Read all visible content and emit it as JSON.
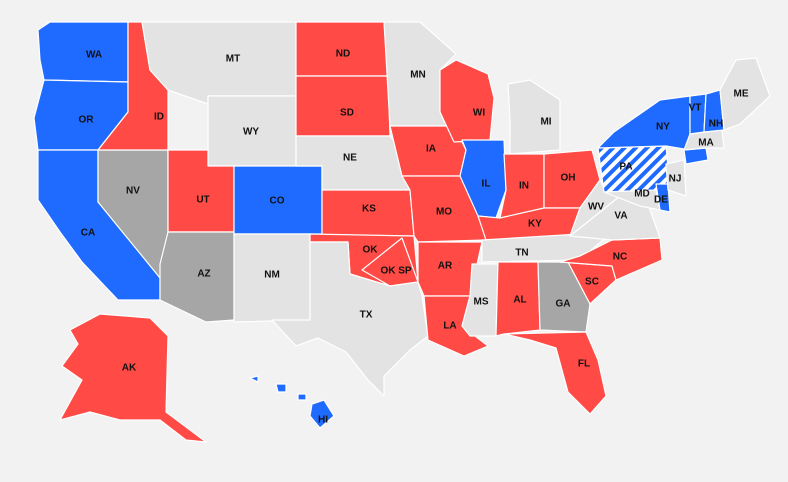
{
  "colors": {
    "blue": "#1f6bff",
    "red": "#ff4a45",
    "gray": "#a6a6a6",
    "light": "#e3e3e3",
    "background": "#f2f2f2"
  },
  "states": {
    "WA": {
      "label": "WA",
      "fill": "blue"
    },
    "OR": {
      "label": "OR",
      "fill": "blue"
    },
    "CA": {
      "label": "CA",
      "fill": "blue"
    },
    "NV": {
      "label": "NV",
      "fill": "gray"
    },
    "ID": {
      "label": "ID",
      "fill": "red"
    },
    "MT": {
      "label": "MT",
      "fill": "light"
    },
    "WY": {
      "label": "WY",
      "fill": "light"
    },
    "UT": {
      "label": "UT",
      "fill": "red"
    },
    "AZ": {
      "label": "AZ",
      "fill": "gray"
    },
    "CO": {
      "label": "CO",
      "fill": "blue"
    },
    "NM": {
      "label": "NM",
      "fill": "light"
    },
    "ND": {
      "label": "ND",
      "fill": "red"
    },
    "SD": {
      "label": "SD",
      "fill": "red"
    },
    "NE": {
      "label": "NE",
      "fill": "light"
    },
    "KS": {
      "label": "KS",
      "fill": "red"
    },
    "OK": {
      "label": "OK",
      "fill": "red"
    },
    "TX": {
      "label": "TX",
      "fill": "light"
    },
    "MN": {
      "label": "MN",
      "fill": "light"
    },
    "IA": {
      "label": "IA",
      "fill": "red"
    },
    "MO": {
      "label": "MO",
      "fill": "red"
    },
    "AR": {
      "label": "AR",
      "fill": "red"
    },
    "LA": {
      "label": "LA",
      "fill": "red"
    },
    "WI": {
      "label": "WI",
      "fill": "red"
    },
    "IL": {
      "label": "IL",
      "fill": "blue"
    },
    "MI": {
      "label": "MI",
      "fill": "light"
    },
    "IN": {
      "label": "IN",
      "fill": "red"
    },
    "OH": {
      "label": "OH",
      "fill": "red"
    },
    "KY": {
      "label": "KY",
      "fill": "red"
    },
    "TN": {
      "label": "TN",
      "fill": "light"
    },
    "MS": {
      "label": "MS",
      "fill": "light"
    },
    "AL": {
      "label": "AL",
      "fill": "red"
    },
    "GA": {
      "label": "GA",
      "fill": "gray"
    },
    "FL": {
      "label": "FL",
      "fill": "red"
    },
    "SC": {
      "label": "SC",
      "fill": "red"
    },
    "NC": {
      "label": "NC",
      "fill": "red"
    },
    "VA": {
      "label": "VA",
      "fill": "light"
    },
    "WV": {
      "label": "WV",
      "fill": "light"
    },
    "MD": {
      "label": "MD",
      "fill": "light"
    },
    "DE": {
      "label": "DE",
      "fill": "blue"
    },
    "NJ": {
      "label": "NJ",
      "fill": "light"
    },
    "PA": {
      "label": "PA",
      "fill": "hatched"
    },
    "NY": {
      "label": "NY",
      "fill": "blue"
    },
    "VT": {
      "label": "VT",
      "fill": "blue"
    },
    "NH": {
      "label": "NH",
      "fill": "blue"
    },
    "MA": {
      "label": "MA",
      "fill": "light"
    },
    "CT": {
      "label": "",
      "fill": "blue"
    },
    "ME": {
      "label": "ME",
      "fill": "light"
    },
    "AK": {
      "label": "AK",
      "fill": "red"
    },
    "HI": {
      "label": "HI",
      "fill": "blue"
    }
  },
  "extra_labels": {
    "OK_SP": "OK SP"
  }
}
